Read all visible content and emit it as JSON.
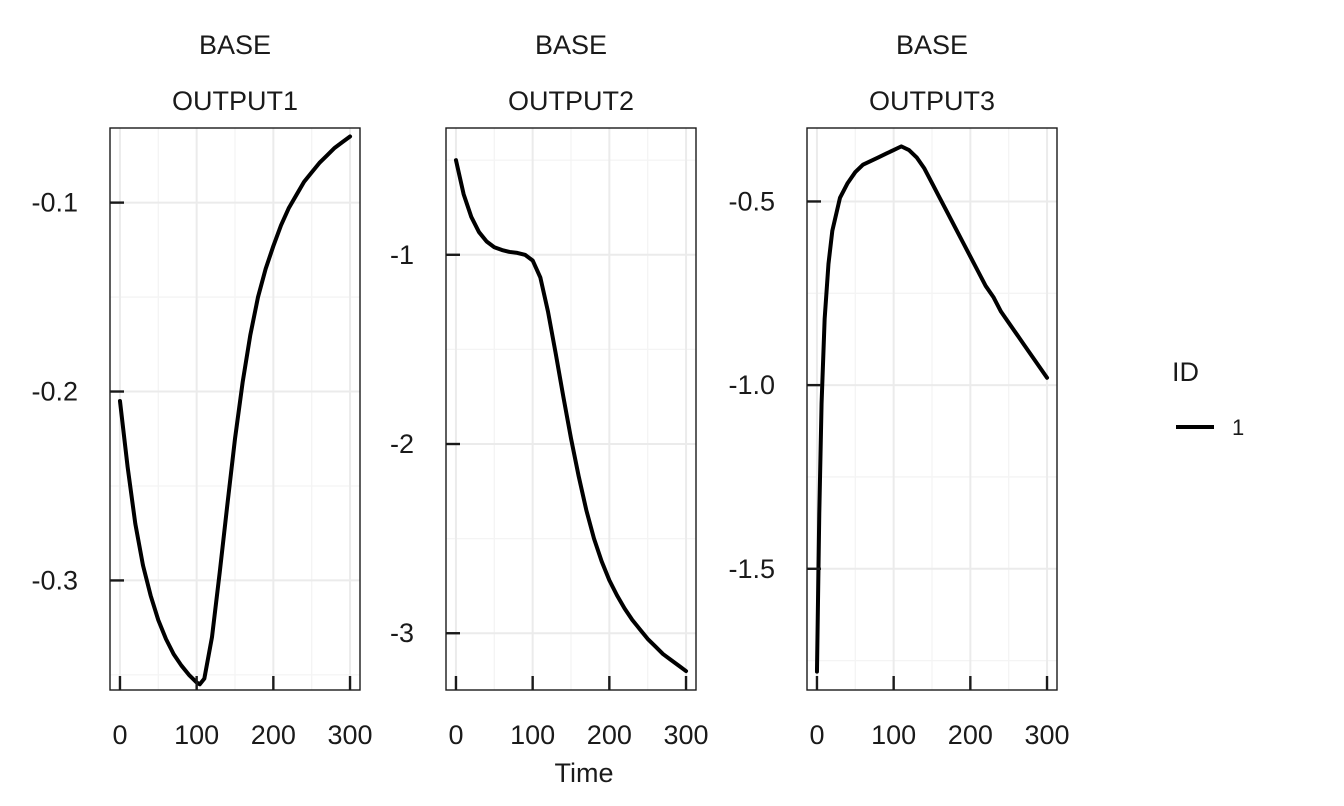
{
  "chart_data": [
    {
      "type": "line",
      "facet_labels": [
        "BASE",
        "OUTPUT1"
      ],
      "xlim": [
        -13,
        313
      ],
      "ylim": [
        -0.358,
        -0.0605
      ],
      "x_ticks": [
        0,
        100,
        200,
        300
      ],
      "x_tick_labels": [
        "0",
        "100",
        "200",
        "300"
      ],
      "y_ticks": [
        -0.1,
        -0.2,
        -0.3
      ],
      "y_tick_labels": [
        "-0.1",
        "-0.2",
        "-0.3"
      ],
      "grid": true,
      "series": [
        {
          "x": [
            0,
            10,
            20,
            30,
            40,
            50,
            60,
            70,
            80,
            90,
            100,
            104,
            110,
            120,
            130,
            140,
            150,
            160,
            170,
            180,
            190,
            200,
            210,
            220,
            230,
            240,
            250,
            260,
            270,
            280,
            290,
            300
          ],
          "y": [
            -0.205,
            -0.24,
            -0.27,
            -0.292,
            -0.308,
            -0.321,
            -0.331,
            -0.339,
            -0.345,
            -0.35,
            -0.354,
            -0.355,
            -0.352,
            -0.33,
            -0.296,
            -0.26,
            -0.225,
            -0.195,
            -0.17,
            -0.15,
            -0.135,
            -0.123,
            -0.112,
            -0.103,
            -0.096,
            -0.089,
            -0.084,
            -0.079,
            -0.075,
            -0.071,
            -0.068,
            -0.065
          ]
        }
      ]
    },
    {
      "type": "line",
      "facet_labels": [
        "BASE",
        "OUTPUT2"
      ],
      "xlim": [
        -13,
        313
      ],
      "ylim": [
        -3.3,
        -0.33
      ],
      "x_ticks": [
        0,
        100,
        200,
        300
      ],
      "x_tick_labels": [
        "0",
        "100",
        "200",
        "300"
      ],
      "y_ticks": [
        -1,
        -2,
        -3
      ],
      "y_tick_labels": [
        "-1",
        "-2",
        "-3"
      ],
      "grid": true,
      "series": [
        {
          "x": [
            0,
            10,
            20,
            30,
            40,
            50,
            60,
            70,
            80,
            90,
            100,
            110,
            120,
            130,
            140,
            150,
            160,
            170,
            180,
            190,
            200,
            210,
            220,
            230,
            240,
            250,
            260,
            270,
            280,
            290,
            300
          ],
          "y": [
            -0.5,
            -0.68,
            -0.8,
            -0.88,
            -0.93,
            -0.96,
            -0.975,
            -0.985,
            -0.99,
            -1.0,
            -1.03,
            -1.12,
            -1.3,
            -1.52,
            -1.75,
            -1.97,
            -2.17,
            -2.35,
            -2.5,
            -2.62,
            -2.72,
            -2.8,
            -2.87,
            -2.93,
            -2.98,
            -3.03,
            -3.07,
            -3.11,
            -3.14,
            -3.17,
            -3.2
          ]
        }
      ]
    },
    {
      "type": "line",
      "facet_labels": [
        "BASE",
        "OUTPUT3"
      ],
      "xlim": [
        -13,
        313
      ],
      "ylim": [
        -1.83,
        -0.3
      ],
      "x_ticks": [
        0,
        100,
        200,
        300
      ],
      "x_tick_labels": [
        "0",
        "100",
        "200",
        "300"
      ],
      "y_ticks": [
        -0.5,
        -1.0,
        -1.5
      ],
      "y_tick_labels": [
        "-0.5",
        "-1.0",
        "-1.5"
      ],
      "grid": true,
      "series": [
        {
          "x": [
            0,
            3,
            6,
            10,
            15,
            20,
            30,
            40,
            50,
            60,
            70,
            80,
            90,
            100,
            110,
            120,
            130,
            140,
            150,
            160,
            170,
            180,
            190,
            200,
            210,
            220,
            230,
            240,
            250,
            260,
            270,
            280,
            290,
            300
          ],
          "y": [
            -1.78,
            -1.35,
            -1.05,
            -0.82,
            -0.67,
            -0.58,
            -0.49,
            -0.45,
            -0.42,
            -0.4,
            -0.39,
            -0.38,
            -0.37,
            -0.36,
            -0.35,
            -0.36,
            -0.38,
            -0.41,
            -0.45,
            -0.49,
            -0.53,
            -0.57,
            -0.61,
            -0.65,
            -0.69,
            -0.73,
            -0.76,
            -0.8,
            -0.83,
            -0.86,
            -0.89,
            -0.92,
            -0.95,
            -0.98
          ]
        }
      ]
    }
  ],
  "shared_xlabel": "Time",
  "legend": {
    "title": "ID",
    "items": [
      {
        "label": "1",
        "color": "#000000"
      }
    ]
  }
}
